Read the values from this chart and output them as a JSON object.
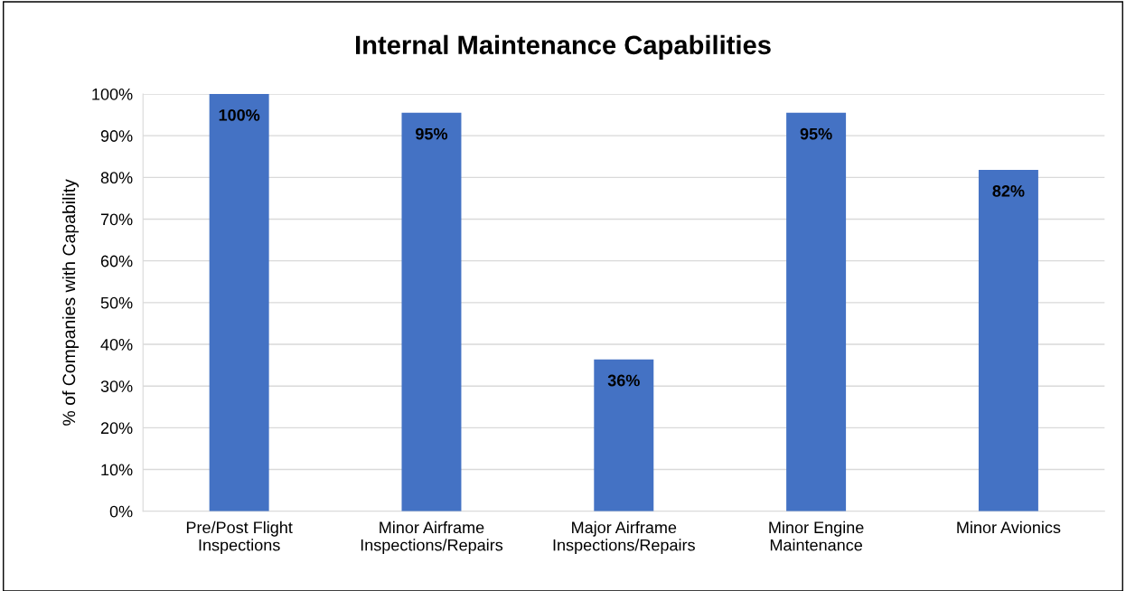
{
  "chart_data": {
    "type": "bar",
    "title": "Internal Maintenance Capabilities",
    "ylabel": "% of Companies with Capability",
    "categories": [
      "Pre/Post Flight\nInspections",
      "Minor Airframe\nInspections/Repairs",
      "Major Airframe\nInspections/Repairs",
      "Minor Engine\nMaintenance",
      "Minor Avionics"
    ],
    "values": [
      100,
      95.5,
      36.4,
      95.5,
      81.8
    ],
    "value_labels": [
      "100%",
      "95%",
      "36%",
      "95%",
      "82%"
    ],
    "color": "#4472c4",
    "ylim": [
      0,
      100
    ],
    "yticks": [
      {
        "value": 0,
        "label": "0%"
      },
      {
        "value": 10,
        "label": "10%"
      },
      {
        "value": 20,
        "label": "20%"
      },
      {
        "value": 30,
        "label": "30%"
      },
      {
        "value": 40,
        "label": "40%"
      },
      {
        "value": 50,
        "label": "50%"
      },
      {
        "value": 60,
        "label": "60%"
      },
      {
        "value": 70,
        "label": "70%"
      },
      {
        "value": 80,
        "label": "80%"
      },
      {
        "value": 90,
        "label": "90%"
      },
      {
        "value": 100,
        "label": "100%"
      }
    ],
    "grid": "y"
  }
}
